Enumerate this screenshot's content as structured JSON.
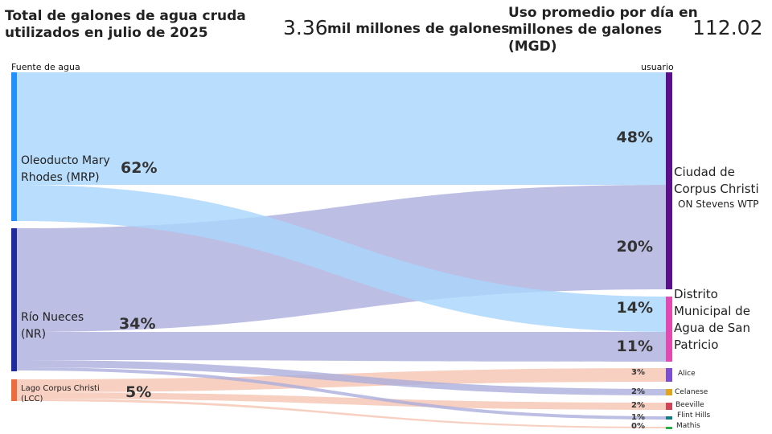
{
  "header": {
    "total_title": "Total de galones de agua cruda utilizados en julio de 2025",
    "total_value": "3.36",
    "total_unit": "mil millones de galones",
    "avg_title": "Uso promedio por día en millones de galones (MGD)",
    "avg_value": "112.02"
  },
  "chart_data": {
    "type": "sankey",
    "source_header": "Fuente de agua",
    "target_header": "usuario",
    "sources": [
      {
        "name": "Oleoducto Mary Rhodes (MRP)",
        "pct": "62%",
        "value": 62,
        "color": "#1e90ff"
      },
      {
        "name": "Río Nueces (NR)",
        "pct": "34%",
        "value": 34,
        "color": "#1f2a9e"
      },
      {
        "name": "Lago Corpus Christi (LCC)",
        "pct": "5%",
        "value": 5,
        "color": "#ee6b3b"
      }
    ],
    "targets": [
      {
        "name": "Ciudad de Corpus Christi",
        "sub": "ON Stevens WTP",
        "color": "#5b0f8a"
      },
      {
        "name": "Distrito Municipal de Agua de San Patricio",
        "sub": "",
        "color": "#e24ab2"
      },
      {
        "name": "Alice",
        "sub": "",
        "color": "#7b4fd0"
      },
      {
        "name": "Celanese",
        "sub": "",
        "color": "#e0a51e"
      },
      {
        "name": "Beeville",
        "sub": "",
        "color": "#d1455a"
      },
      {
        "name": "Flint Hills",
        "sub": "",
        "color": "#137a86"
      },
      {
        "name": "Mathis",
        "sub": "",
        "color": "#25b04a"
      }
    ],
    "flows": [
      {
        "source": 0,
        "target": 0,
        "value": 48,
        "pct": "48%"
      },
      {
        "source": 1,
        "target": 0,
        "value": 20,
        "pct": "20%"
      },
      {
        "source": 0,
        "target": 1,
        "value": 14,
        "pct": "14%"
      },
      {
        "source": 1,
        "target": 1,
        "value": 11,
        "pct": "11%"
      },
      {
        "source": 2,
        "target": 2,
        "value": 3,
        "pct": "3%"
      },
      {
        "source": 1,
        "target": 3,
        "value": 2,
        "pct": "2%"
      },
      {
        "source": 2,
        "target": 4,
        "value": 2,
        "pct": "2%"
      },
      {
        "source": 1,
        "target": 5,
        "value": 1,
        "pct": "1%"
      },
      {
        "source": 2,
        "target": 6,
        "value": 0,
        "pct": "0%"
      }
    ],
    "flow_colors": [
      "#a9d5fb",
      "#a9acdc",
      "#f5c6b3"
    ]
  }
}
